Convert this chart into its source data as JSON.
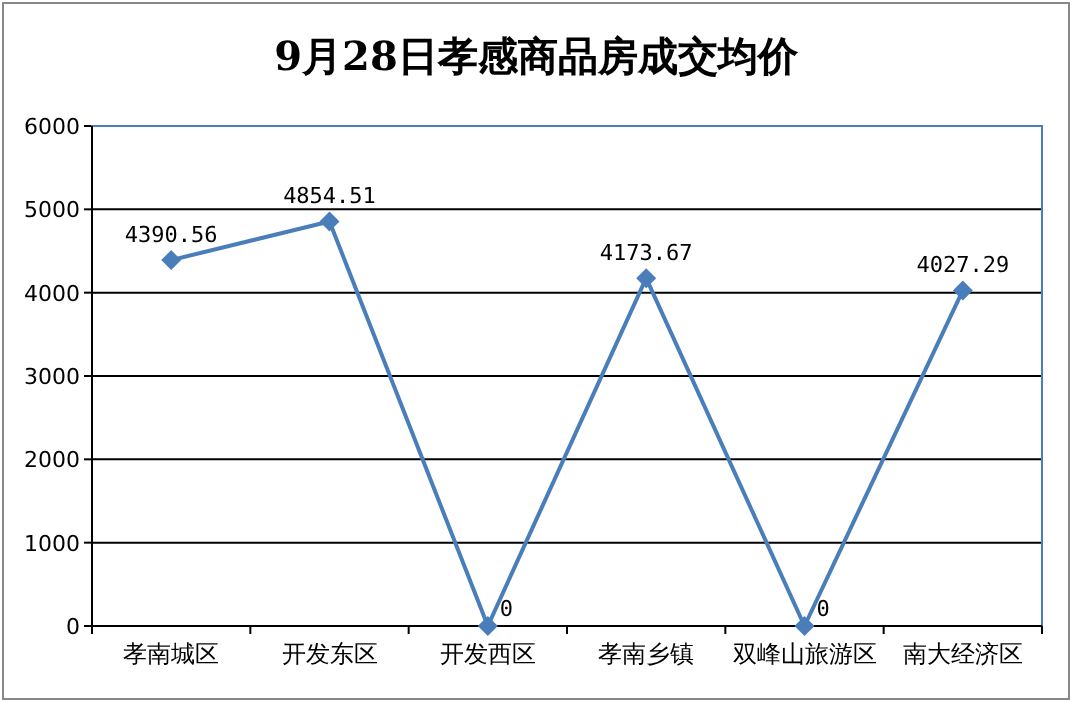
{
  "chart_data": {
    "type": "line",
    "title": "9月28日孝感商品房成交均价",
    "categories": [
      "孝南城区",
      "开发东区",
      "开发西区",
      "孝南乡镇",
      "双峰山旅游区",
      "南大经济区"
    ],
    "series": [
      {
        "color": "#4a7ebb",
        "values": [
          4390.56,
          4854.51,
          0,
          4173.67,
          0,
          4027.29
        ]
      }
    ],
    "value_labels": [
      "4390.56",
      "4854.51",
      "0",
      "4173.67",
      "0",
      "4027.29"
    ],
    "ylim": [
      0,
      6000
    ],
    "yticks": [
      0,
      1000,
      2000,
      3000,
      4000,
      5000,
      6000
    ],
    "grid": "y",
    "marker": "diamond",
    "line_style": "solid"
  }
}
